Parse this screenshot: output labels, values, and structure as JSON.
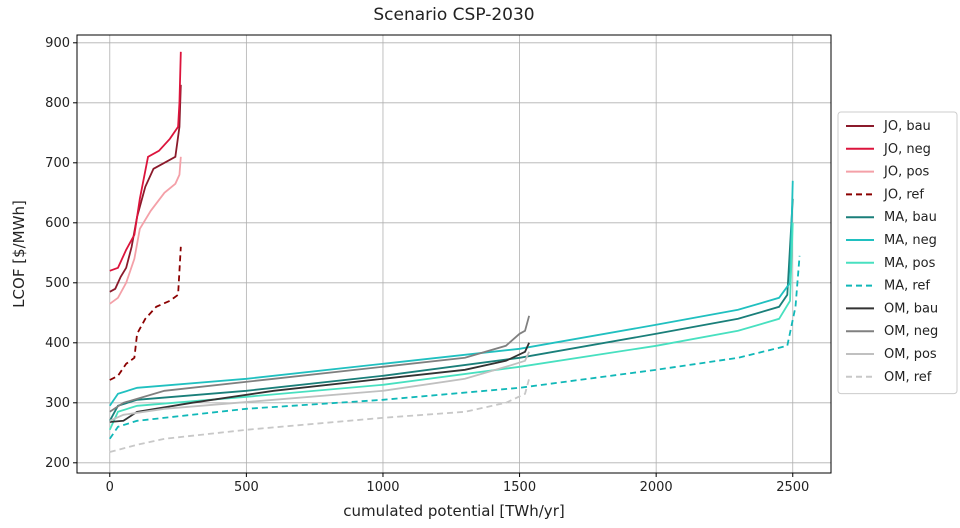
{
  "chart_data": {
    "type": "line",
    "title": "Scenario CSP-2030",
    "xlabel": "cumulated potential [TWh/yr]",
    "ylabel": "LCOF [$/MWh]",
    "xlim": [
      -120,
      2640
    ],
    "ylim": [
      183,
      913
    ],
    "xticks": [
      0,
      500,
      1000,
      1500,
      2000,
      2500
    ],
    "yticks": [
      200,
      300,
      400,
      500,
      600,
      700,
      800,
      900
    ],
    "grid": true,
    "legend": "right",
    "series": [
      {
        "name": "JO, bau",
        "color": "#8b1a2b",
        "dashed": false,
        "x": [
          0,
          20,
          40,
          60,
          80,
          100,
          130,
          160,
          200,
          240,
          255,
          260
        ],
        "values": [
          485,
          490,
          510,
          525,
          560,
          610,
          660,
          690,
          700,
          710,
          760,
          830
        ]
      },
      {
        "name": "JO, neg",
        "color": "#dc143c",
        "dashed": false,
        "x": [
          0,
          30,
          60,
          90,
          110,
          140,
          180,
          220,
          250,
          255,
          260
        ],
        "values": [
          520,
          525,
          555,
          580,
          640,
          710,
          720,
          740,
          760,
          800,
          885
        ]
      },
      {
        "name": "JO, pos",
        "color": "#f4a0a8",
        "dashed": false,
        "x": [
          0,
          30,
          60,
          90,
          110,
          150,
          200,
          240,
          255,
          260
        ],
        "values": [
          465,
          475,
          500,
          540,
          590,
          620,
          650,
          665,
          680,
          710
        ]
      },
      {
        "name": "JO, ref",
        "color": "#8b0000",
        "dashed": true,
        "x": [
          0,
          30,
          60,
          90,
          100,
          130,
          170,
          220,
          250,
          260
        ],
        "values": [
          338,
          345,
          365,
          375,
          415,
          440,
          460,
          470,
          480,
          560
        ]
      },
      {
        "name": "MA, bau",
        "color": "#1a7f7a",
        "dashed": false,
        "x": [
          0,
          30,
          100,
          500,
          1000,
          1500,
          2000,
          2300,
          2450,
          2480,
          2500
        ],
        "values": [
          270,
          295,
          305,
          320,
          345,
          375,
          415,
          440,
          460,
          480,
          640
        ]
      },
      {
        "name": "MA, neg",
        "color": "#20c0c0",
        "dashed": false,
        "x": [
          0,
          30,
          100,
          500,
          1000,
          1500,
          2000,
          2300,
          2450,
          2490,
          2500
        ],
        "values": [
          295,
          315,
          325,
          340,
          365,
          390,
          430,
          455,
          475,
          500,
          670
        ]
      },
      {
        "name": "MA, pos",
        "color": "#48e0c0",
        "dashed": false,
        "x": [
          0,
          30,
          100,
          500,
          1000,
          1500,
          2000,
          2300,
          2450,
          2490,
          2500
        ],
        "values": [
          255,
          285,
          295,
          310,
          330,
          360,
          395,
          420,
          440,
          470,
          600
        ]
      },
      {
        "name": "MA, ref",
        "color": "#10b8b8",
        "dashed": true,
        "x": [
          0,
          30,
          100,
          500,
          1000,
          1500,
          2000,
          2300,
          2480,
          2510,
          2525
        ],
        "values": [
          240,
          260,
          270,
          290,
          305,
          325,
          355,
          375,
          395,
          460,
          545
        ]
      },
      {
        "name": "OM, bau",
        "color": "#333333",
        "dashed": false,
        "x": [
          0,
          50,
          100,
          300,
          600,
          1000,
          1300,
          1450,
          1520,
          1535
        ],
        "values": [
          268,
          270,
          285,
          300,
          320,
          340,
          355,
          370,
          385,
          400
        ]
      },
      {
        "name": "OM, neg",
        "color": "#808080",
        "dashed": false,
        "x": [
          0,
          50,
          200,
          600,
          1000,
          1300,
          1450,
          1500,
          1520,
          1535
        ],
        "values": [
          285,
          300,
          320,
          340,
          360,
          375,
          395,
          415,
          420,
          445
        ]
      },
      {
        "name": "OM, pos",
        "color": "#c0c0c0",
        "dashed": false,
        "x": [
          0,
          50,
          200,
          600,
          1000,
          1300,
          1450,
          1520,
          1535
        ],
        "values": [
          270,
          280,
          290,
          305,
          320,
          340,
          360,
          370,
          385
        ]
      },
      {
        "name": "OM, ref",
        "color": "#c8c8c8",
        "dashed": true,
        "x": [
          0,
          100,
          200,
          500,
          1000,
          1300,
          1450,
          1520,
          1535
        ],
        "values": [
          218,
          230,
          240,
          255,
          275,
          285,
          300,
          315,
          340
        ]
      }
    ]
  }
}
